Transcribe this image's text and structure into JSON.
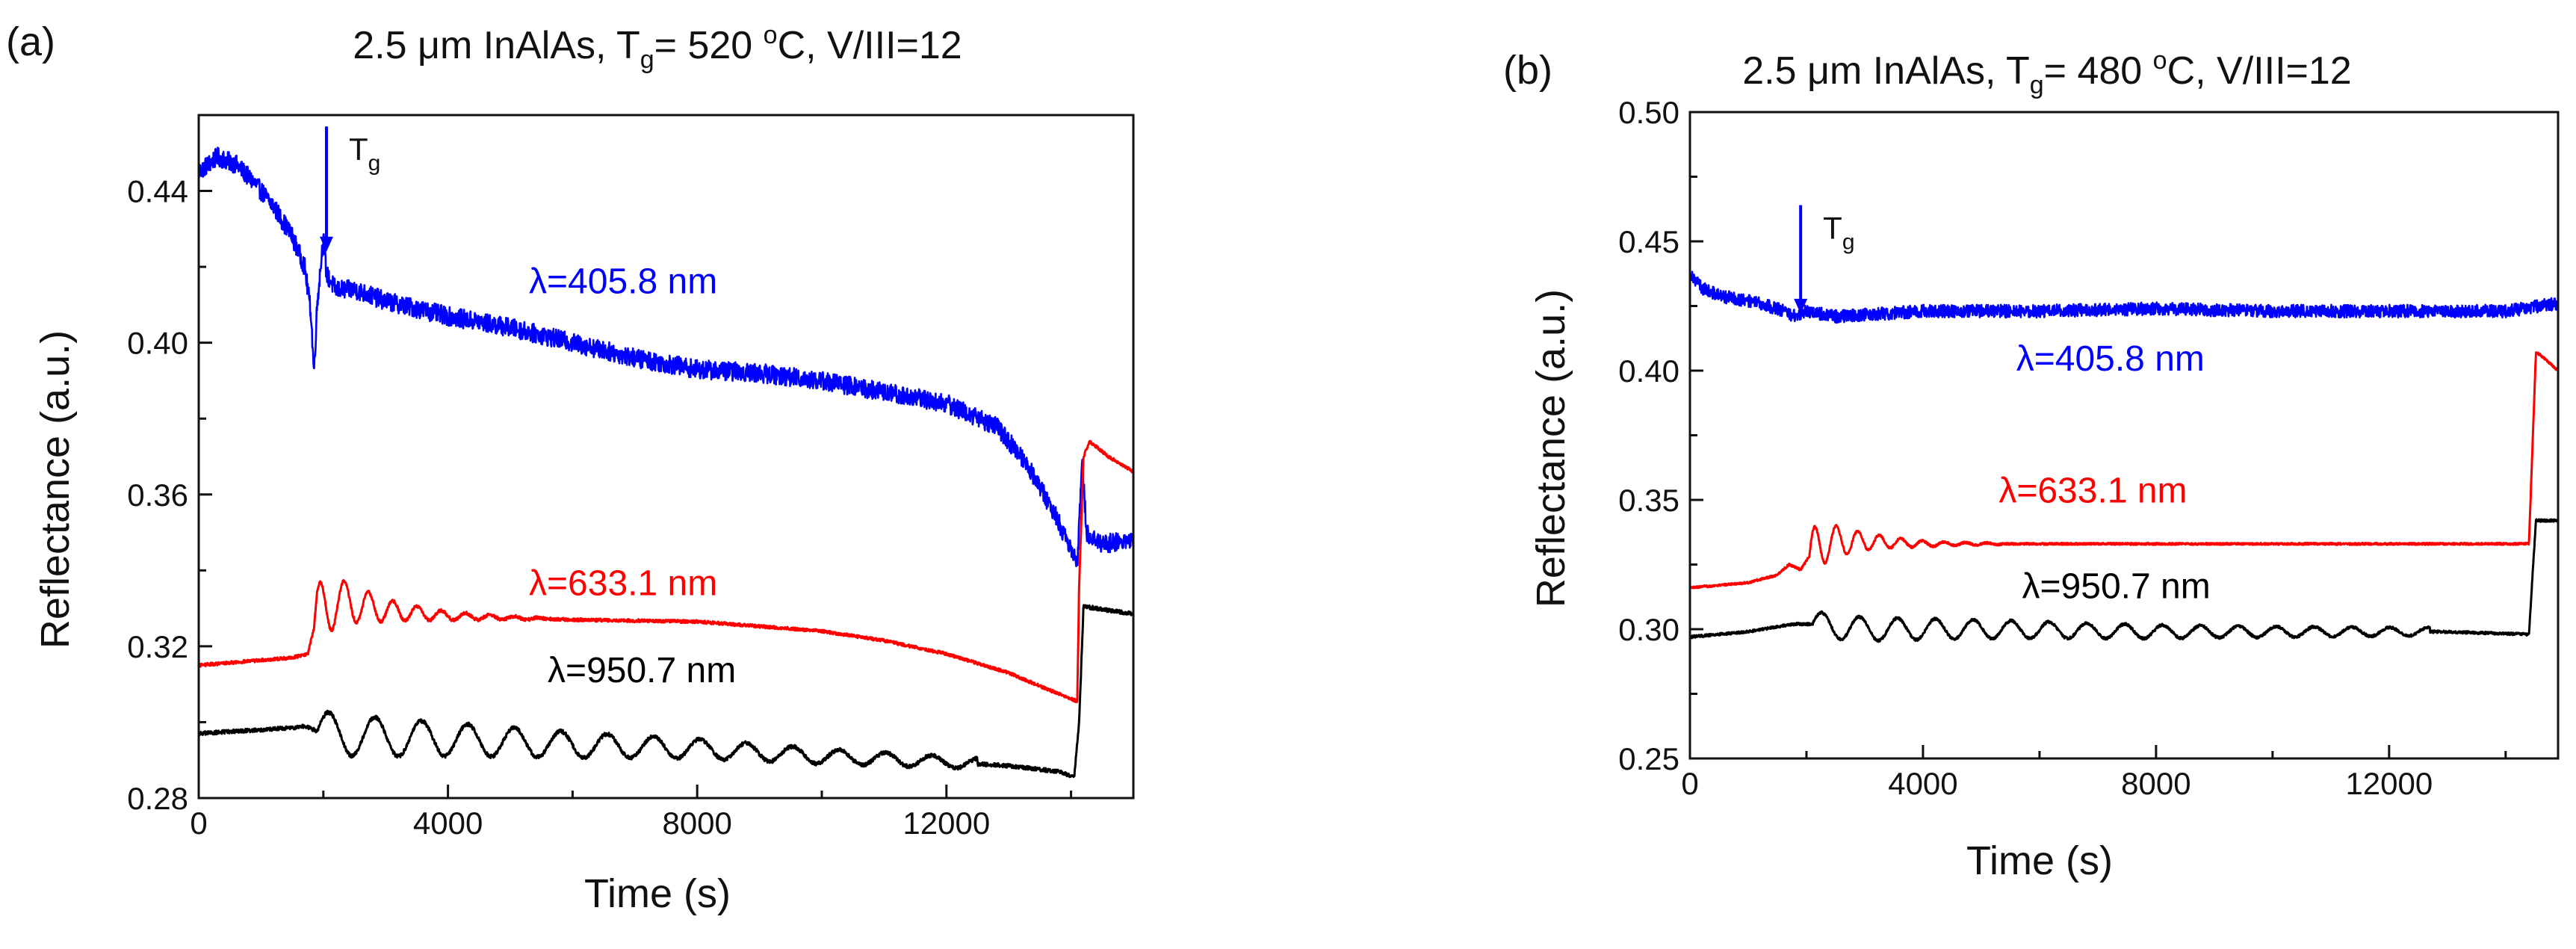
{
  "figure": {
    "panel_labels": [
      "(a)",
      "(b)"
    ]
  },
  "chart_data": [
    {
      "type": "line",
      "panel_label": "(a)",
      "title": "2.5 μm InAlAs, Tg= 520 °C, V/III=12",
      "title_parts": {
        "pre": "2.5 μm InAlAs, T",
        "sub": "g",
        "mid": "= 520 ",
        "sup": "o",
        "post": "C, V/III=12"
      },
      "xlabel": "Time (s)",
      "ylabel": "Reflectance (a.u.)",
      "xlim": [
        0,
        15000
      ],
      "ylim": [
        0.28,
        0.46
      ],
      "xticks": [
        0,
        4000,
        8000,
        12000
      ],
      "yticks": [
        0.28,
        0.32,
        0.36,
        0.4,
        0.44
      ],
      "xtick_labels": [
        "0",
        "4000",
        "8000",
        "12000"
      ],
      "ytick_labels": [
        "0.28",
        "0.32",
        "0.36",
        "0.40",
        "0.44"
      ],
      "annotation": {
        "label": "T",
        "sub": "g",
        "x": 2050,
        "y_tip": 0.424,
        "y_tail": 0.457
      },
      "series": [
        {
          "name": "λ=405.8 nm",
          "color": "#0000ff",
          "label_x": 5300,
          "label_y": 0.413,
          "points": [
            [
              0,
              0.445
            ],
            [
              300,
              0.449
            ],
            [
              600,
              0.447
            ],
            [
              900,
              0.442
            ],
            [
              1200,
              0.436
            ],
            [
              1500,
              0.428
            ],
            [
              1700,
              0.42
            ],
            [
              1800,
              0.408
            ],
            [
              1850,
              0.392
            ],
            [
              1900,
              0.41
            ],
            [
              2000,
              0.428
            ],
            [
              2050,
              0.418
            ],
            [
              2200,
              0.414
            ],
            [
              2500,
              0.414
            ],
            [
              3000,
              0.411
            ],
            [
              4000,
              0.407
            ],
            [
              5000,
              0.404
            ],
            [
              6000,
              0.4
            ],
            [
              7000,
              0.396
            ],
            [
              8000,
              0.393
            ],
            [
              9000,
              0.392
            ],
            [
              10000,
              0.39
            ],
            [
              11000,
              0.387
            ],
            [
              12000,
              0.384
            ],
            [
              12800,
              0.378
            ],
            [
              13300,
              0.368
            ],
            [
              13700,
              0.356
            ],
            [
              14000,
              0.346
            ],
            [
              14100,
              0.342
            ],
            [
              14180,
              0.368
            ],
            [
              14250,
              0.35
            ],
            [
              14500,
              0.347
            ],
            [
              15000,
              0.348
            ]
          ],
          "noise": 0.0025,
          "oscillation": null
        },
        {
          "name": "λ=633.1 nm",
          "color": "#ff0000",
          "label_x": 5300,
          "label_y": 0.3335,
          "points": [
            [
              0,
              0.315
            ],
            [
              1500,
              0.317
            ],
            [
              1750,
              0.318
            ],
            [
              1900,
              0.328
            ],
            [
              2200,
              0.332
            ],
            [
              3000,
              0.3295
            ],
            [
              4000,
              0.328
            ],
            [
              6000,
              0.327
            ],
            [
              8000,
              0.3265
            ],
            [
              10000,
              0.324
            ],
            [
              11000,
              0.3215
            ],
            [
              12000,
              0.318
            ],
            [
              13000,
              0.313
            ],
            [
              13500,
              0.3095
            ],
            [
              14100,
              0.3055
            ],
            [
              14130,
              0.336
            ],
            [
              14200,
              0.37
            ],
            [
              14300,
              0.374
            ],
            [
              14600,
              0.37
            ],
            [
              15000,
              0.366
            ]
          ],
          "noise": 0.0004,
          "oscillation": {
            "start": 1850,
            "end": 5600,
            "period": 390,
            "amp": 0.009,
            "decay": 1050
          }
        },
        {
          "name": "λ=950.7 nm",
          "color": "#000000",
          "label_x": 5600,
          "label_y": 0.3105,
          "points": [
            [
              0,
              0.297
            ],
            [
              1500,
              0.2985
            ],
            [
              1700,
              0.299
            ],
            [
              2000,
              0.297
            ],
            [
              3000,
              0.296
            ],
            [
              4000,
              0.2955
            ],
            [
              6000,
              0.294
            ],
            [
              8000,
              0.293
            ],
            [
              10000,
              0.291
            ],
            [
              12000,
              0.2895
            ],
            [
              13000,
              0.2885
            ],
            [
              13800,
              0.287
            ],
            [
              14050,
              0.2855
            ],
            [
              14130,
              0.3
            ],
            [
              14200,
              0.3305
            ],
            [
              14400,
              0.33
            ],
            [
              15000,
              0.3285
            ]
          ],
          "noise": 0.0005,
          "oscillation": {
            "start": 1900,
            "end": 12500,
            "period": 745,
            "amp": 0.0058,
            "decay": 7500
          }
        }
      ]
    },
    {
      "type": "line",
      "panel_label": "(b)",
      "title": "2.5 μm InAlAs, Tg= 480 °C, V/III=12",
      "title_parts": {
        "pre": "2.5 μm InAlAs, T",
        "sub": "g",
        "mid": "= 480 ",
        "sup": "o",
        "post": "C, V/III=12"
      },
      "xlabel": "Time (s)",
      "ylabel": "Reflectance (a.u.)",
      "xlim": [
        0,
        14900
      ],
      "ylim": [
        0.25,
        0.5
      ],
      "xticks": [
        0,
        4000,
        8000,
        12000
      ],
      "yticks": [
        0.25,
        0.3,
        0.35,
        0.4,
        0.45,
        0.5
      ],
      "xtick_labels": [
        "0",
        "4000",
        "8000",
        "12000"
      ],
      "ytick_labels": [
        "0.25",
        "0.30",
        "0.35",
        "0.40",
        "0.45",
        "0.50"
      ],
      "annotation": {
        "label": "T",
        "sub": "g",
        "x": 1900,
        "y_tip": 0.422,
        "y_tail": 0.464
      },
      "series": [
        {
          "name": "λ=405.8 nm",
          "color": "#0000ff",
          "label_x": 5600,
          "label_y": 0.4,
          "points": [
            [
              0,
              0.438
            ],
            [
              200,
              0.432
            ],
            [
              500,
              0.429
            ],
            [
              1000,
              0.427
            ],
            [
              1500,
              0.424
            ],
            [
              1800,
              0.421
            ],
            [
              2000,
              0.423
            ],
            [
              2500,
              0.421
            ],
            [
              4000,
              0.423
            ],
            [
              6000,
              0.423
            ],
            [
              8000,
              0.424
            ],
            [
              10000,
              0.423
            ],
            [
              12000,
              0.423
            ],
            [
              14000,
              0.423
            ],
            [
              14900,
              0.426
            ]
          ],
          "noise": 0.0025,
          "oscillation": null
        },
        {
          "name": "λ=633.1 nm",
          "color": "#ff0000",
          "label_x": 5300,
          "label_y": 0.349,
          "points": [
            [
              0,
              0.316
            ],
            [
              1000,
              0.318
            ],
            [
              1500,
              0.321
            ],
            [
              1700,
              0.325
            ],
            [
              1900,
              0.323
            ],
            [
              2100,
              0.33
            ],
            [
              2400,
              0.334
            ],
            [
              3000,
              0.334
            ],
            [
              4000,
              0.333
            ],
            [
              6000,
              0.333
            ],
            [
              8000,
              0.333
            ],
            [
              10000,
              0.333
            ],
            [
              12000,
              0.333
            ],
            [
              14400,
              0.333
            ],
            [
              14460,
              0.37
            ],
            [
              14520,
              0.407
            ],
            [
              14600,
              0.406
            ],
            [
              14900,
              0.4
            ]
          ],
          "noise": 0.0004,
          "oscillation": {
            "start": 2050,
            "end": 5400,
            "period": 370,
            "amp": 0.01,
            "decay": 900
          }
        },
        {
          "name": "λ=950.7 nm",
          "color": "#000000",
          "label_x": 5700,
          "label_y": 0.312,
          "points": [
            [
              0,
              0.297
            ],
            [
              1000,
              0.299
            ],
            [
              1500,
              0.301
            ],
            [
              1800,
              0.302
            ],
            [
              2000,
              0.302
            ],
            [
              3000,
              0.3
            ],
            [
              5000,
              0.3
            ],
            [
              8000,
              0.299
            ],
            [
              11000,
              0.299
            ],
            [
              13000,
              0.299
            ],
            [
              14400,
              0.298
            ],
            [
              14460,
              0.32
            ],
            [
              14520,
              0.342
            ],
            [
              14900,
              0.342
            ]
          ],
          "noise": 0.0005,
          "oscillation": {
            "start": 2100,
            "end": 12700,
            "period": 650,
            "amp": 0.005,
            "decay": 9000
          }
        }
      ]
    }
  ]
}
